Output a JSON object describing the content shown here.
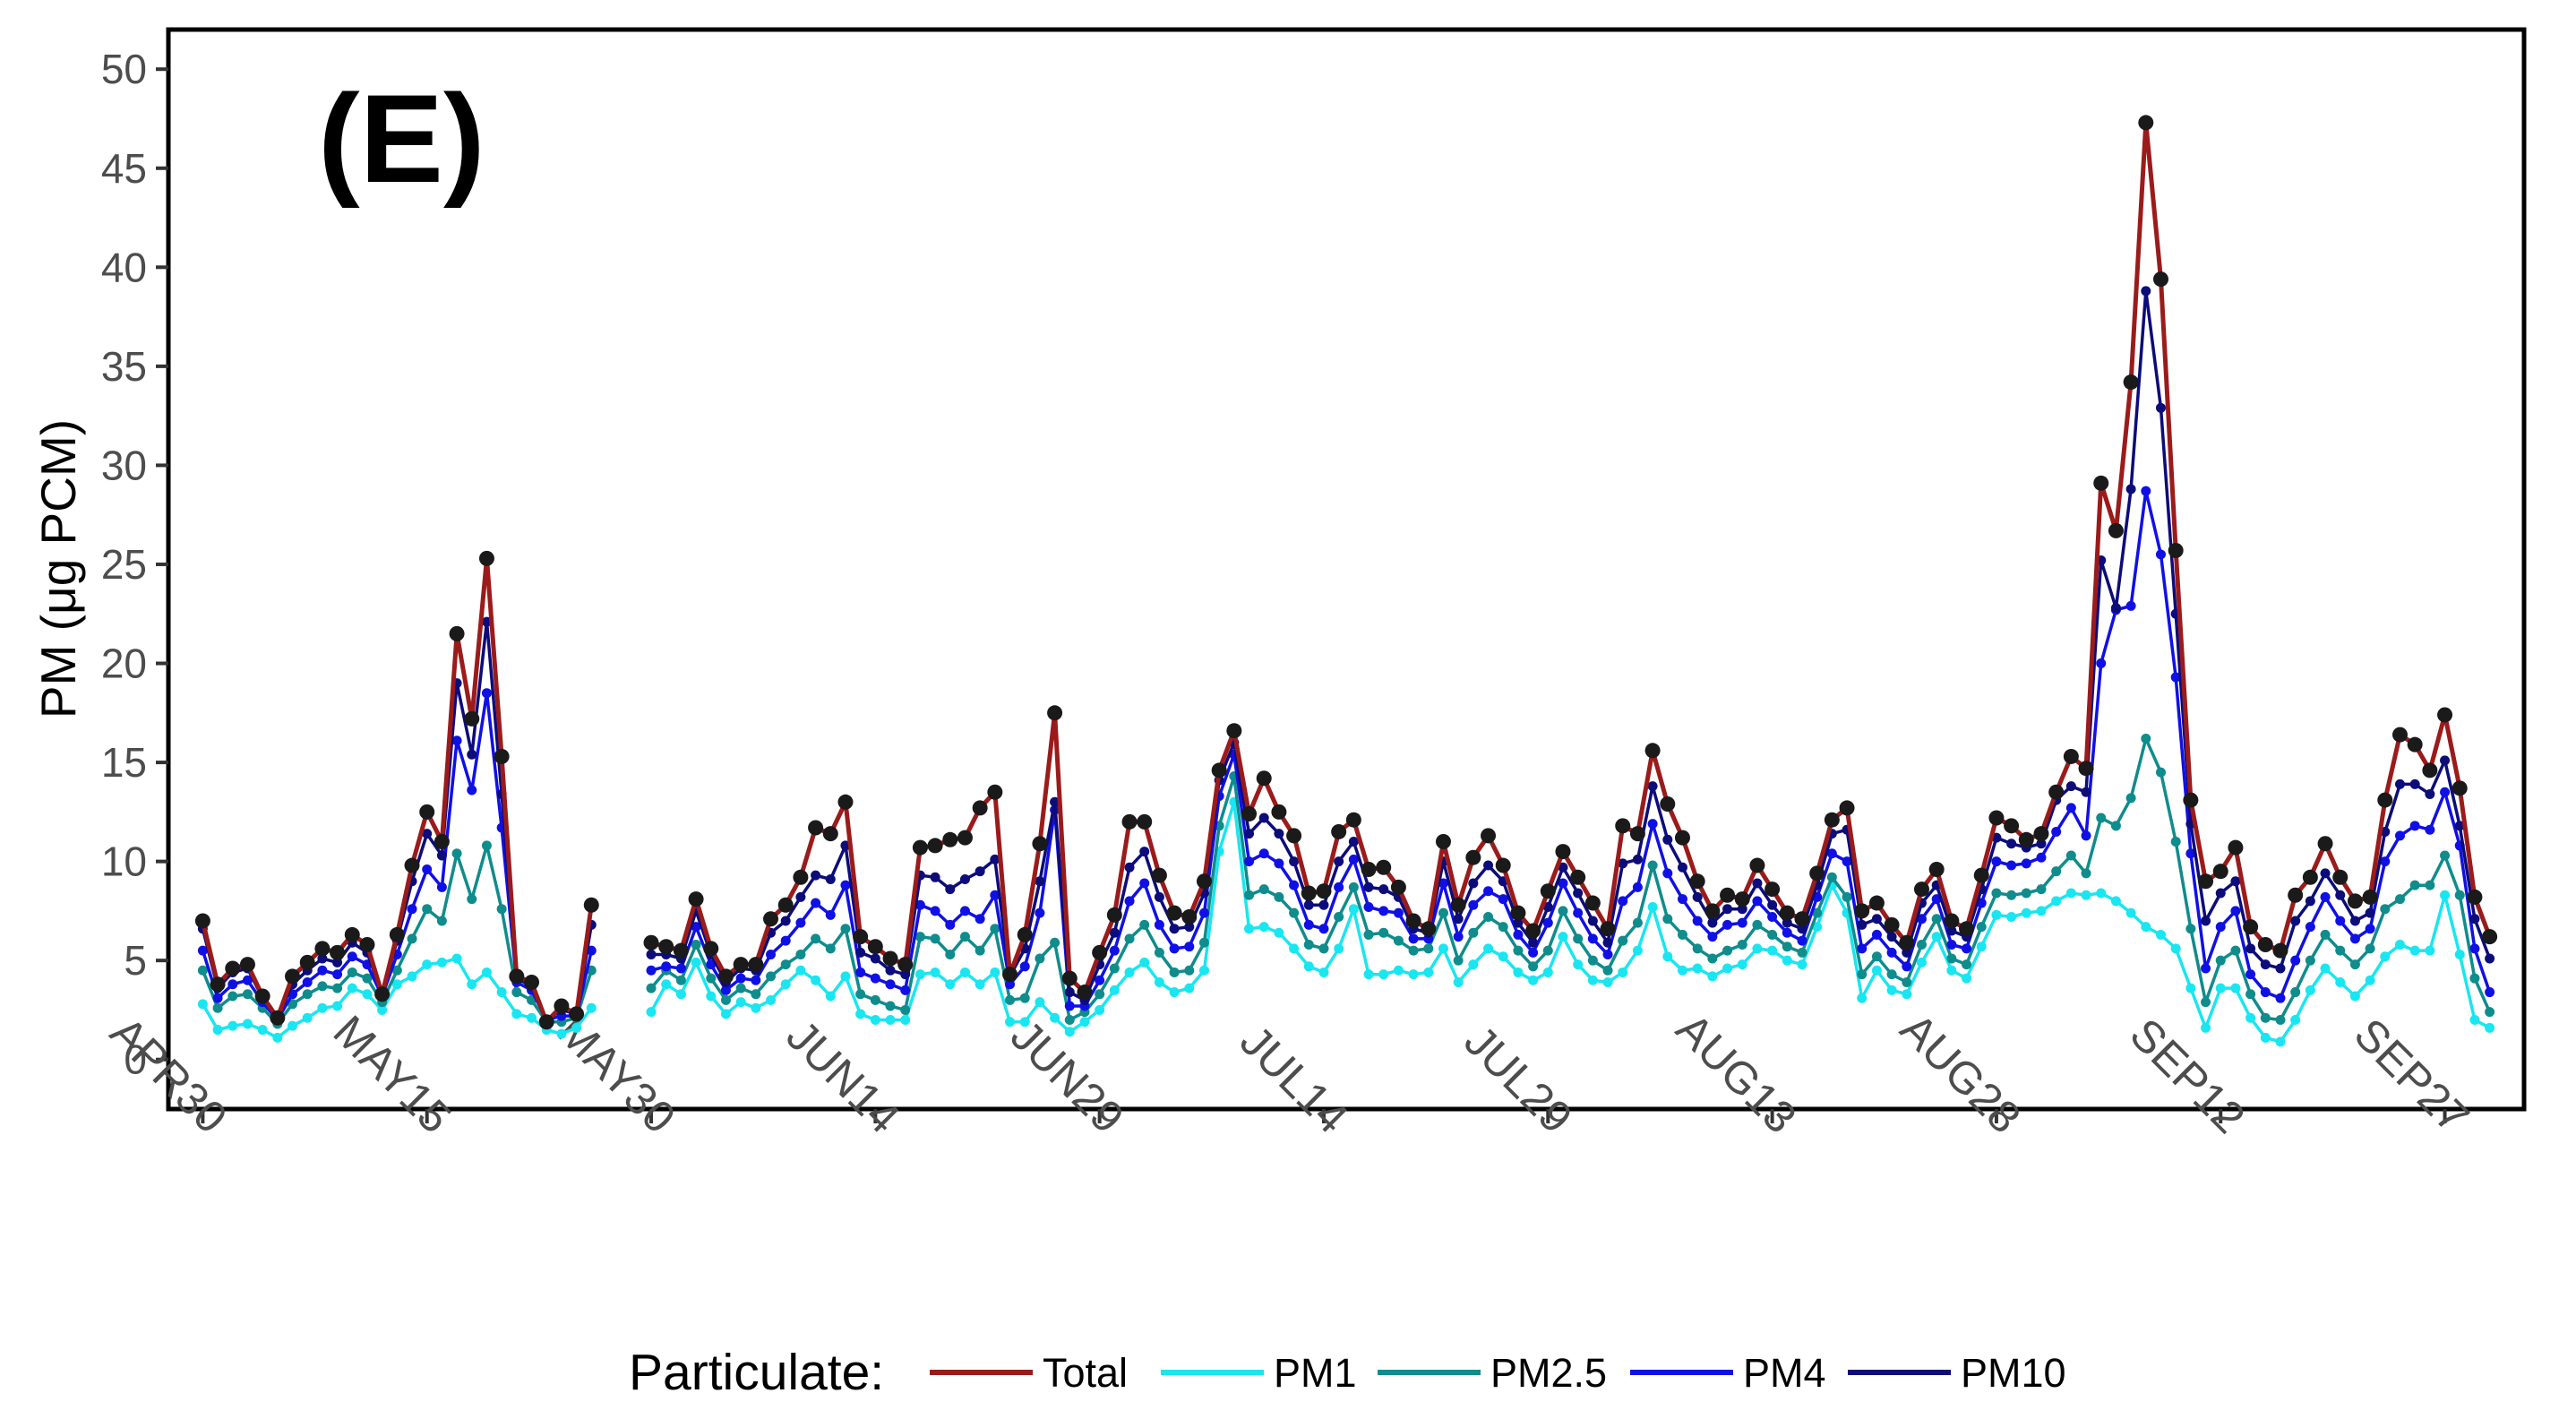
{
  "chart_data": {
    "type": "line",
    "panel_label": "(E)",
    "title": "",
    "xlabel": "",
    "ylabel": "PM (μg PCM)",
    "ylim": [
      -2.5,
      52
    ],
    "yticks": [
      0,
      5,
      10,
      15,
      20,
      25,
      30,
      35,
      40,
      45,
      50
    ],
    "x_day_range": [
      -2.3,
      155.3
    ],
    "x_ticks": [
      {
        "label": "APR30",
        "day": 0
      },
      {
        "label": "MAY15",
        "day": 15
      },
      {
        "label": "MAY30",
        "day": 30
      },
      {
        "label": "JUN14",
        "day": 45
      },
      {
        "label": "JUN29",
        "day": 60
      },
      {
        "label": "JUL14",
        "day": 75
      },
      {
        "label": "JUL29",
        "day": 90
      },
      {
        "label": "AUG13",
        "day": 105
      },
      {
        "label": "AUG28",
        "day": 120
      },
      {
        "label": "SEP12",
        "day": 135
      },
      {
        "label": "SEP27",
        "day": 150
      }
    ],
    "legend": {
      "title": "Particulate:",
      "position": "bottom"
    },
    "colors": {
      "Total": "#9b1b1b",
      "PM1": "#19e6f0",
      "PM2.5": "#0f8c8c",
      "PM4": "#1010e6",
      "PM10": "#0c0c7a",
      "total_marker": "#1a1a1a"
    },
    "x_start_day": 0,
    "series": [
      {
        "name": "Total",
        "values": [
          7.0,
          3.8,
          4.6,
          4.8,
          3.2,
          2.1,
          4.2,
          4.9,
          5.6,
          5.4,
          6.3,
          5.8,
          3.3,
          6.3,
          9.8,
          12.5,
          11.0,
          21.5,
          17.2,
          25.3,
          15.3,
          4.2,
          3.9,
          1.9,
          2.7,
          2.3,
          7.8,
          null,
          null,
          null,
          5.9,
          5.7,
          5.5,
          8.1,
          5.6,
          4.2,
          4.8,
          4.8,
          7.1,
          7.8,
          9.2,
          11.7,
          11.4,
          13.0,
          6.2,
          5.7,
          5.1,
          4.8,
          10.7,
          10.8,
          11.1,
          11.2,
          12.7,
          13.5,
          4.3,
          6.3,
          10.9,
          17.5,
          4.1,
          3.4,
          5.4,
          7.3,
          12.0,
          12.0,
          9.3,
          7.4,
          7.2,
          9.0,
          14.6,
          16.6,
          12.4,
          14.2,
          12.5,
          11.3,
          8.4,
          8.5,
          11.5,
          12.1,
          9.6,
          9.7,
          8.7,
          7.0,
          6.6,
          11.0,
          7.8,
          10.2,
          11.3,
          9.8,
          7.4,
          6.5,
          8.5,
          10.5,
          9.2,
          7.9,
          6.6,
          11.8,
          11.4,
          15.6,
          12.9,
          11.2,
          9.0,
          7.5,
          8.3,
          8.1,
          9.8,
          8.6,
          7.4,
          7.1,
          9.4,
          12.1,
          12.7,
          7.5,
          7.9,
          6.8,
          5.9,
          8.6,
          9.6,
          7.0,
          6.6,
          9.3,
          12.2,
          11.8,
          11.1,
          11.4,
          13.5,
          15.3,
          14.7,
          29.1,
          26.7,
          34.2,
          47.3,
          39.4,
          25.7,
          13.1,
          9.0,
          9.5,
          10.7,
          6.7,
          5.8,
          5.5,
          8.3,
          9.2,
          10.9,
          9.2,
          8.0,
          8.2,
          13.1,
          16.4,
          15.9,
          14.6,
          17.4,
          13.7,
          8.2,
          6.2
        ]
      },
      {
        "name": "PM1",
        "values": [
          2.8,
          1.5,
          1.7,
          1.8,
          1.5,
          1.1,
          1.7,
          2.1,
          2.6,
          2.7,
          3.6,
          3.3,
          2.5,
          3.8,
          4.2,
          4.8,
          4.9,
          5.1,
          3.8,
          4.4,
          3.4,
          2.3,
          2.1,
          1.5,
          1.3,
          1.6,
          2.6,
          null,
          null,
          null,
          2.4,
          3.8,
          3.3,
          4.9,
          3.2,
          2.3,
          2.9,
          2.6,
          3.0,
          3.8,
          4.5,
          4.0,
          3.2,
          4.2,
          2.3,
          2.0,
          2.0,
          2.0,
          4.3,
          4.4,
          3.8,
          4.4,
          3.8,
          4.4,
          1.9,
          1.9,
          2.9,
          2.1,
          1.4,
          1.9,
          2.5,
          3.5,
          4.4,
          4.9,
          3.9,
          3.4,
          3.6,
          4.5,
          10.5,
          13.0,
          6.6,
          6.7,
          6.4,
          5.6,
          4.7,
          4.4,
          5.6,
          7.6,
          4.3,
          4.3,
          4.5,
          4.3,
          4.4,
          5.6,
          3.9,
          4.8,
          5.6,
          5.2,
          4.4,
          4.0,
          4.4,
          6.2,
          4.8,
          4.0,
          3.9,
          4.4,
          5.5,
          7.7,
          5.2,
          4.5,
          4.6,
          4.2,
          4.6,
          4.8,
          5.6,
          5.5,
          5.0,
          4.8,
          6.7,
          8.8,
          7.4,
          3.1,
          4.5,
          3.5,
          3.3,
          4.9,
          6.2,
          4.5,
          4.1,
          5.7,
          7.3,
          7.2,
          7.4,
          7.5,
          8.0,
          8.4,
          8.3,
          8.4,
          8.0,
          7.4,
          6.7,
          6.3,
          5.6,
          3.6,
          1.6,
          3.6,
          3.6,
          2.1,
          1.1,
          0.9,
          2.0,
          3.5,
          4.6,
          3.9,
          3.2,
          4.0,
          5.2,
          5.8,
          5.5,
          5.5,
          8.3,
          5.3,
          2.0,
          1.6
        ]
      },
      {
        "name": "PM2.5",
        "values": [
          4.5,
          2.6,
          3.2,
          3.3,
          2.6,
          1.8,
          2.8,
          3.3,
          3.7,
          3.6,
          4.4,
          4.1,
          2.9,
          4.5,
          6.1,
          7.6,
          7.0,
          10.4,
          8.1,
          10.8,
          7.6,
          3.4,
          3.0,
          1.9,
          1.9,
          2.1,
          4.5,
          null,
          null,
          null,
          3.6,
          4.5,
          4.0,
          5.8,
          4.1,
          3.0,
          3.6,
          3.3,
          4.2,
          4.8,
          5.3,
          6.1,
          5.6,
          6.6,
          3.3,
          3.0,
          2.7,
          2.5,
          6.2,
          6.1,
          5.3,
          6.2,
          5.5,
          6.6,
          3.0,
          3.1,
          5.1,
          5.9,
          2.0,
          2.4,
          3.3,
          4.6,
          6.1,
          6.8,
          5.4,
          4.4,
          4.5,
          5.9,
          11.8,
          14.3,
          8.3,
          8.6,
          8.2,
          7.4,
          5.8,
          5.6,
          7.2,
          8.7,
          6.3,
          6.4,
          6.0,
          5.5,
          5.6,
          7.4,
          5.0,
          6.4,
          7.2,
          6.7,
          5.5,
          4.7,
          5.5,
          7.5,
          6.1,
          5.0,
          4.5,
          6.0,
          6.9,
          9.8,
          7.1,
          6.3,
          5.6,
          5.1,
          5.5,
          5.8,
          6.8,
          6.3,
          5.7,
          5.4,
          7.4,
          9.2,
          8.2,
          4.3,
          5.2,
          4.3,
          3.9,
          5.8,
          7.1,
          5.1,
          4.8,
          6.7,
          8.4,
          8.3,
          8.4,
          8.6,
          9.5,
          10.3,
          9.4,
          12.2,
          11.8,
          13.2,
          16.2,
          14.5,
          11.0,
          6.6,
          2.9,
          5.0,
          5.5,
          3.3,
          2.1,
          2.0,
          3.4,
          5.0,
          6.3,
          5.5,
          4.8,
          5.6,
          7.6,
          8.1,
          8.8,
          8.8,
          10.3,
          8.3,
          4.1,
          2.4
        ]
      },
      {
        "name": "PM4",
        "values": [
          5.5,
          3.1,
          3.8,
          4.0,
          2.9,
          2.0,
          3.3,
          3.9,
          4.5,
          4.3,
          5.2,
          4.8,
          3.2,
          5.3,
          7.6,
          9.6,
          8.7,
          16.1,
          13.6,
          18.5,
          11.7,
          3.9,
          3.5,
          2.0,
          2.2,
          2.2,
          5.5,
          null,
          null,
          null,
          4.5,
          4.7,
          4.6,
          6.7,
          4.8,
          3.5,
          4.1,
          4.0,
          5.3,
          6.0,
          6.9,
          7.9,
          7.3,
          8.8,
          4.4,
          4.1,
          3.8,
          3.5,
          7.8,
          7.5,
          6.8,
          7.5,
          7.1,
          8.3,
          3.8,
          4.7,
          7.4,
          12.6,
          2.7,
          2.7,
          4.0,
          5.5,
          8.0,
          8.9,
          6.8,
          5.6,
          5.7,
          7.4,
          13.3,
          15.4,
          10.0,
          10.4,
          9.9,
          8.8,
          6.8,
          6.6,
          8.7,
          10.1,
          7.7,
          7.5,
          7.4,
          6.1,
          6.1,
          8.9,
          6.2,
          7.8,
          8.5,
          8.1,
          6.3,
          5.4,
          6.9,
          8.9,
          7.4,
          6.1,
          5.3,
          8.0,
          8.7,
          11.9,
          9.4,
          8.1,
          7.0,
          6.2,
          6.8,
          6.9,
          8.0,
          7.2,
          6.4,
          6.0,
          8.2,
          10.4,
          10.0,
          5.6,
          6.3,
          5.4,
          4.7,
          7.1,
          8.1,
          5.8,
          5.6,
          7.9,
          10.0,
          9.8,
          9.9,
          10.2,
          11.5,
          12.7,
          11.3,
          20.0,
          22.7,
          22.9,
          28.7,
          25.5,
          19.3,
          10.4,
          4.6,
          6.7,
          7.5,
          4.3,
          3.4,
          3.1,
          5.0,
          6.7,
          8.2,
          7.0,
          6.1,
          6.6,
          10.0,
          11.3,
          11.8,
          11.6,
          13.5,
          10.8,
          5.6,
          3.4
        ]
      },
      {
        "name": "PM10",
        "values": [
          6.6,
          3.6,
          4.4,
          4.6,
          3.1,
          2.1,
          3.8,
          4.5,
          5.1,
          4.9,
          5.9,
          5.4,
          3.3,
          6.0,
          9.0,
          11.4,
          10.3,
          19.0,
          15.4,
          22.1,
          13.4,
          4.1,
          3.7,
          2.0,
          2.5,
          2.3,
          6.8,
          null,
          null,
          null,
          5.3,
          5.3,
          5.1,
          7.5,
          5.3,
          3.9,
          4.6,
          4.5,
          6.4,
          7.0,
          8.2,
          9.3,
          9.1,
          10.8,
          5.4,
          5.1,
          4.5,
          4.3,
          9.3,
          9.2,
          8.6,
          9.1,
          9.5,
          10.1,
          4.2,
          5.6,
          9.0,
          13.0,
          3.4,
          3.0,
          4.8,
          6.4,
          9.7,
          10.5,
          8.2,
          6.6,
          6.7,
          8.4,
          14.1,
          16.0,
          11.4,
          12.2,
          11.4,
          10.0,
          7.8,
          7.8,
          10.0,
          11.0,
          8.7,
          8.6,
          8.2,
          6.6,
          6.4,
          10.0,
          7.1,
          8.9,
          9.8,
          9.0,
          6.9,
          5.9,
          7.7,
          9.7,
          8.4,
          7.0,
          5.9,
          9.9,
          10.1,
          13.8,
          11.1,
          9.7,
          8.2,
          6.9,
          7.6,
          7.6,
          8.9,
          7.8,
          6.9,
          6.6,
          8.8,
          11.4,
          11.6,
          6.8,
          7.1,
          6.2,
          5.4,
          7.9,
          8.8,
          6.5,
          6.2,
          8.6,
          11.2,
          10.9,
          10.7,
          10.9,
          13.1,
          13.8,
          13.5,
          25.2,
          22.8,
          28.8,
          38.8,
          32.9,
          22.5,
          11.9,
          7.0,
          8.4,
          9.0,
          5.6,
          4.8,
          4.6,
          7.0,
          8.0,
          9.4,
          8.3,
          7.0,
          7.4,
          11.5,
          13.9,
          13.9,
          13.4,
          15.1,
          11.8,
          7.1,
          5.1
        ]
      }
    ]
  }
}
